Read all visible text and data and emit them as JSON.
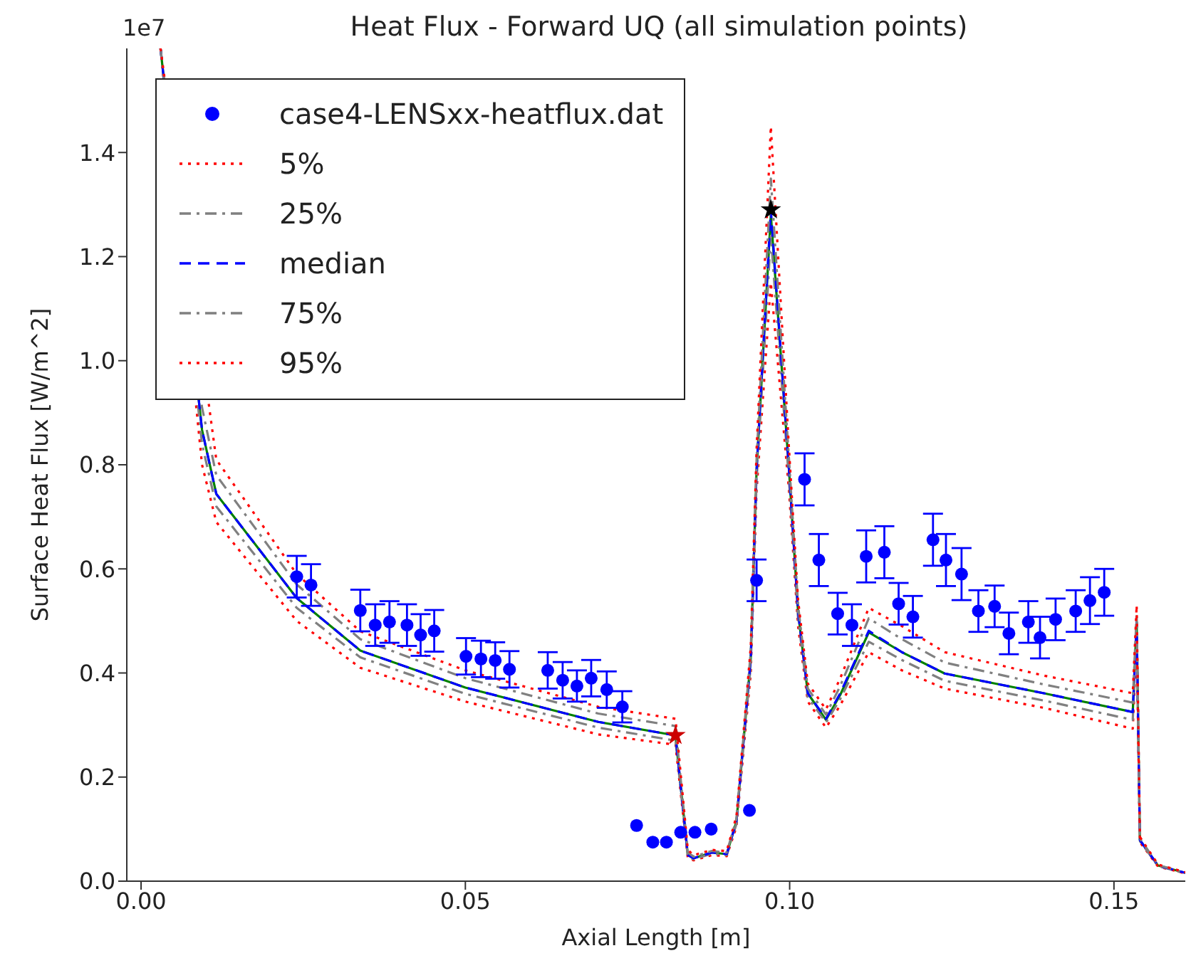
{
  "chart_data": {
    "type": "line",
    "title": "Heat Flux - Forward UQ (all simulation points)",
    "xlabel": "Axial Length [m]",
    "ylabel": "Surface Heat Flux [W/m^2]",
    "annotations": [
      "1e7"
    ],
    "xlim": [
      -0.0022,
      0.161
    ],
    "xticks": [
      {
        "value": 0,
        "label": "0.00"
      },
      0.05,
      {
        "value": 0.1,
        "label": "0.10"
      },
      0.15
    ],
    "ylim": [
      0,
      1.6
    ],
    "yticks": [
      {
        "value": 0,
        "label": "0.0"
      },
      0.2,
      0.4,
      0.6,
      0.8,
      {
        "value": 1,
        "label": "1.0"
      },
      1.2,
      1.4
    ],
    "grid": false,
    "legend": "top left",
    "series": [
      {
        "name": "case4-LENSxx-heatflux.dat",
        "type": "scatter",
        "marker": "circle",
        "color": "#0000ff",
        "x": [
          0.024,
          0.0262,
          0.0338,
          0.0361,
          0.0383,
          0.041,
          0.0431,
          0.0452,
          0.0501,
          0.0524,
          0.0546,
          0.0568,
          0.0627,
          0.065,
          0.0672,
          0.0694,
          0.0718,
          0.0742,
          0.0764,
          0.0789,
          0.081,
          0.0832,
          0.0854,
          0.0879,
          0.0938,
          0.0949,
          0.1023,
          0.1045,
          0.1074,
          0.1096,
          0.1118,
          0.1146,
          0.1168,
          0.119,
          0.1221,
          0.1241,
          0.1265,
          0.1291,
          0.1316,
          0.1338,
          0.1368,
          0.1386,
          0.141,
          0.1441,
          0.1463,
          0.1485
        ],
        "values": [
          0.585,
          0.569,
          0.52,
          0.492,
          0.498,
          0.492,
          0.473,
          0.481,
          0.432,
          0.427,
          0.424,
          0.407,
          0.405,
          0.386,
          0.375,
          0.39,
          0.368,
          0.335,
          0.107,
          0.075,
          0.075,
          0.094,
          0.094,
          0.1,
          0.136,
          0.578,
          0.772,
          0.617,
          0.514,
          0.492,
          0.624,
          0.632,
          0.533,
          0.508,
          0.656,
          0.617,
          0.59,
          0.519,
          0.528,
          0.476,
          0.498,
          0.468,
          0.503,
          0.519,
          0.539,
          0.555
        ],
        "errors": [
          0.04,
          0.04,
          0.04,
          0.04,
          0.04,
          0.04,
          0.04,
          0.04,
          0.035,
          0.035,
          0.035,
          0.035,
          0.035,
          0.035,
          0.03,
          0.035,
          0.035,
          0.03,
          null,
          null,
          null,
          null,
          null,
          null,
          null,
          0.04,
          0.05,
          0.05,
          0.04,
          0.04,
          0.05,
          0.05,
          0.04,
          0.04,
          0.05,
          0.05,
          0.05,
          0.04,
          0.04,
          0.04,
          0.04,
          0.04,
          0.04,
          0.04,
          0.045,
          0.045
        ]
      },
      {
        "color": "#008000",
        "line_style": "solid",
        "x": [
          0.003,
          0.0094,
          0.0116,
          0.024,
          0.0338,
          0.05,
          0.0705,
          0.0824,
          0.0843,
          0.0852,
          0.088,
          0.0903,
          0.0918,
          0.094,
          0.0949,
          0.0971,
          0.0999,
          0.1013,
          0.1028,
          0.1056,
          0.1078,
          0.1122,
          0.1173,
          0.1239,
          0.1392,
          0.1529,
          0.1535,
          0.154,
          0.1568,
          0.161
        ],
        "values": [
          1.6,
          0.867,
          0.744,
          0.544,
          0.443,
          0.372,
          0.306,
          0.28,
          0.05,
          0.044,
          0.055,
          0.052,
          0.115,
          0.427,
          0.79,
          1.28,
          0.79,
          0.517,
          0.361,
          0.31,
          0.358,
          0.478,
          0.44,
          0.399,
          0.361,
          0.325,
          0.498,
          0.079,
          0.03,
          0.016
        ]
      },
      {
        "name": "5%",
        "color": "#ff0000",
        "line_style": "dotted",
        "x": [
          0.003,
          0.0094,
          0.0116,
          0.024,
          0.0338,
          0.05,
          0.0705,
          0.0824,
          0.0843,
          0.0852,
          0.088,
          0.0903,
          0.0918,
          0.094,
          0.0949,
          0.0971,
          0.0999,
          0.1013,
          0.1028,
          0.1056,
          0.1078,
          0.1122,
          0.1173,
          0.1239,
          0.1392,
          0.1529,
          0.1535,
          0.154,
          0.1568,
          0.161
        ],
        "values": [
          1.6,
          0.8,
          0.69,
          0.5,
          0.41,
          0.345,
          0.282,
          0.262,
          0.044,
          0.04,
          0.05,
          0.048,
          0.105,
          0.4,
          0.75,
          1.15,
          0.75,
          0.49,
          0.345,
          0.295,
          0.338,
          0.44,
          0.405,
          0.37,
          0.333,
          0.293,
          0.46,
          0.075,
          0.028,
          0.015
        ]
      },
      {
        "name": "25%",
        "color": "#808080",
        "line_style": "dashdot",
        "x": [
          0.003,
          0.0094,
          0.0116,
          0.024,
          0.0338,
          0.05,
          0.0705,
          0.0824,
          0.0843,
          0.0852,
          0.088,
          0.0903,
          0.0918,
          0.094,
          0.0949,
          0.0971,
          0.0999,
          0.1013,
          0.1028,
          0.1056,
          0.1078,
          0.1122,
          0.1173,
          0.1239,
          0.1392,
          0.1529,
          0.1535,
          0.154,
          0.1568,
          0.161
        ],
        "values": [
          1.6,
          0.84,
          0.72,
          0.525,
          0.43,
          0.36,
          0.295,
          0.27,
          0.047,
          0.042,
          0.053,
          0.05,
          0.11,
          0.415,
          0.77,
          1.24,
          0.77,
          0.505,
          0.353,
          0.305,
          0.35,
          0.46,
          0.425,
          0.385,
          0.347,
          0.31,
          0.48,
          0.077,
          0.029,
          0.015
        ]
      },
      {
        "name": "median",
        "color": "#0000ff",
        "line_style": "dashed",
        "x": [
          0.003,
          0.0094,
          0.0116,
          0.024,
          0.0338,
          0.05,
          0.0705,
          0.0824,
          0.0843,
          0.0852,
          0.088,
          0.0903,
          0.0918,
          0.094,
          0.0949,
          0.0971,
          0.0999,
          0.1013,
          0.1028,
          0.1056,
          0.1078,
          0.1122,
          0.1173,
          0.1239,
          0.1392,
          0.1529,
          0.1535,
          0.154,
          0.1568,
          0.161
        ],
        "values": [
          1.6,
          0.867,
          0.744,
          0.544,
          0.443,
          0.372,
          0.306,
          0.28,
          0.05,
          0.044,
          0.055,
          0.052,
          0.115,
          0.427,
          0.79,
          1.29,
          0.79,
          0.517,
          0.361,
          0.312,
          0.361,
          0.481,
          0.44,
          0.399,
          0.361,
          0.325,
          0.498,
          0.079,
          0.03,
          0.016
        ]
      },
      {
        "name": "75%",
        "color": "#808080",
        "line_style": "dashdot",
        "x": [
          0.003,
          0.0094,
          0.0116,
          0.024,
          0.0338,
          0.05,
          0.0705,
          0.0824,
          0.0843,
          0.0852,
          0.088,
          0.0903,
          0.0918,
          0.094,
          0.0949,
          0.0971,
          0.0999,
          0.1013,
          0.1028,
          0.1056,
          0.1078,
          0.1122,
          0.1173,
          0.1239,
          0.1392,
          0.1529,
          0.1535,
          0.154,
          0.1568,
          0.161
        ],
        "values": [
          1.6,
          0.91,
          0.78,
          0.57,
          0.465,
          0.39,
          0.322,
          0.298,
          0.055,
          0.047,
          0.058,
          0.055,
          0.12,
          0.44,
          0.81,
          1.35,
          0.81,
          0.53,
          0.37,
          0.32,
          0.375,
          0.505,
          0.465,
          0.42,
          0.378,
          0.343,
          0.515,
          0.082,
          0.031,
          0.016
        ]
      },
      {
        "name": "95%",
        "color": "#ff0000",
        "line_style": "dotted",
        "x": [
          0.003,
          0.0094,
          0.0116,
          0.024,
          0.0338,
          0.05,
          0.0705,
          0.0824,
          0.0843,
          0.0852,
          0.088,
          0.0903,
          0.0918,
          0.094,
          0.0949,
          0.0971,
          0.0999,
          0.1013,
          0.1028,
          0.1056,
          0.1078,
          0.1122,
          0.1173,
          0.1239,
          0.1392,
          0.1529,
          0.1535,
          0.154,
          0.1568,
          0.161
        ],
        "values": [
          1.6,
          null,
          0.81,
          0.59,
          0.48,
          0.405,
          0.335,
          0.312,
          0.06,
          0.05,
          0.06,
          0.058,
          0.125,
          0.45,
          0.83,
          1.45,
          0.83,
          0.54,
          0.38,
          0.33,
          0.39,
          0.525,
          0.49,
          0.44,
          0.395,
          0.361,
          0.53,
          0.085,
          0.032,
          0.017
        ]
      },
      {
        "type": "scatter",
        "marker": "star",
        "color": "#000000",
        "x": [
          0.0971
        ],
        "values": [
          1.29
        ]
      },
      {
        "type": "scatter",
        "marker": "star",
        "color": "#cc0000",
        "x": [
          0.0824
        ],
        "values": [
          0.28
        ]
      }
    ]
  }
}
